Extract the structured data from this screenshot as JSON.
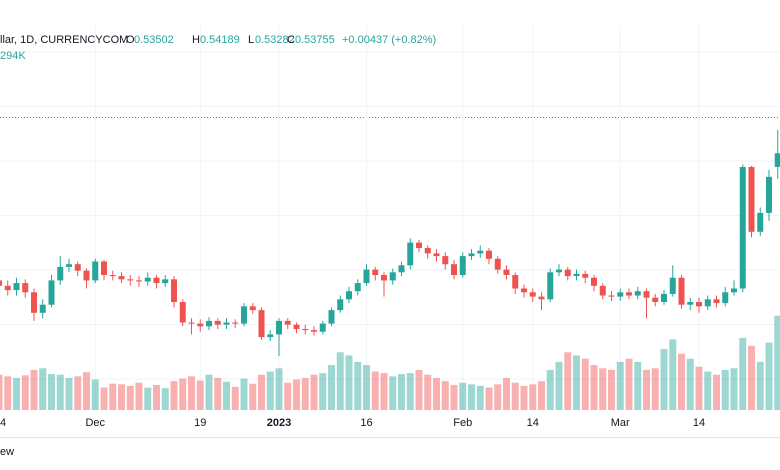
{
  "header": {
    "symbol": "llar, 1D, CURRENCYCOM",
    "o": "O",
    "h": "H",
    "l": "L",
    "c": "C",
    "change": "+0.00437 (+0.82%)",
    "volume": "294K",
    "footer": "ew"
  },
  "chart_data": {
    "type": "candlestick",
    "categories": [
      "4",
      null,
      null,
      null,
      null,
      null,
      null,
      null,
      null,
      null,
      null,
      "Dec",
      null,
      null,
      null,
      null,
      null,
      null,
      null,
      null,
      null,
      null,
      null,
      "19",
      null,
      null,
      null,
      null,
      null,
      null,
      null,
      null,
      "2023",
      null,
      null,
      null,
      null,
      null,
      null,
      null,
      null,
      null,
      "16",
      null,
      null,
      null,
      null,
      null,
      null,
      null,
      null,
      null,
      null,
      "Feb",
      null,
      null,
      null,
      null,
      null,
      null,
      null,
      "14",
      null,
      null,
      null,
      null,
      null,
      null,
      null,
      null,
      null,
      "Mar",
      null,
      null,
      null,
      null,
      null,
      null,
      null,
      null,
      "14",
      null,
      null,
      null,
      null,
      null,
      null,
      null,
      null,
      null
    ],
    "open": [
      0.514,
      0.513,
      0.5122,
      0.5135,
      0.5118,
      0.508,
      0.5095,
      0.514,
      0.5165,
      0.517,
      0.5158,
      0.514,
      0.5175,
      0.515,
      0.5148,
      0.5142,
      0.514,
      0.5138,
      0.5145,
      0.5135,
      0.5142,
      0.51,
      0.5062,
      0.506,
      0.5055,
      0.5065,
      0.5058,
      0.5062,
      0.506,
      0.5092,
      0.5085,
      0.5035,
      0.504,
      0.5065,
      0.5058,
      0.505,
      0.5048,
      0.5045,
      0.506,
      0.5085,
      0.5105,
      0.512,
      0.5135,
      0.516,
      0.515,
      0.514,
      0.5155,
      0.5168,
      0.521,
      0.52,
      0.519,
      0.5185,
      0.517,
      0.515,
      0.5185,
      0.519,
      0.5195,
      0.518,
      0.516,
      0.515,
      0.5125,
      0.5118,
      0.511,
      0.5105,
      0.5155,
      0.516,
      0.5148,
      0.5152,
      0.5145,
      0.513,
      0.5112,
      0.511,
      0.5118,
      0.5112,
      0.512,
      0.5108,
      0.51,
      0.5115,
      0.5145,
      0.5095,
      0.51,
      0.5092,
      0.5105,
      0.5098,
      0.5118,
      0.5125,
      0.535,
      0.523,
      0.5265,
      0.53502
    ],
    "high": [
      0.515,
      0.514,
      0.5145,
      0.5142,
      0.5125,
      0.5105,
      0.515,
      0.5185,
      0.518,
      0.5175,
      0.5162,
      0.518,
      0.5178,
      0.5158,
      0.5155,
      0.515,
      0.5148,
      0.5155,
      0.515,
      0.515,
      0.5148,
      0.5105,
      0.507,
      0.5068,
      0.5072,
      0.507,
      0.507,
      0.5068,
      0.5098,
      0.5098,
      0.509,
      0.5048,
      0.507,
      0.507,
      0.5062,
      0.5058,
      0.5055,
      0.5065,
      0.509,
      0.5112,
      0.5128,
      0.5142,
      0.517,
      0.5165,
      0.5155,
      0.5162,
      0.5175,
      0.5218,
      0.5215,
      0.5205,
      0.5198,
      0.5192,
      0.5178,
      0.5192,
      0.5198,
      0.5205,
      0.52,
      0.5185,
      0.5168,
      0.5155,
      0.5132,
      0.5125,
      0.5118,
      0.5162,
      0.517,
      0.5165,
      0.516,
      0.5158,
      0.515,
      0.5135,
      0.512,
      0.5125,
      0.5125,
      0.5128,
      0.5125,
      0.5115,
      0.5122,
      0.5168,
      0.515,
      0.5108,
      0.5108,
      0.5112,
      0.5112,
      0.5128,
      0.514,
      0.5355,
      0.5352,
      0.5275,
      0.5345,
      0.54189
    ],
    "low": [
      0.512,
      0.5112,
      0.5112,
      0.5108,
      0.5065,
      0.507,
      0.509,
      0.5132,
      0.5155,
      0.5148,
      0.5125,
      0.5135,
      0.514,
      0.514,
      0.5135,
      0.513,
      0.5128,
      0.513,
      0.5125,
      0.5128,
      0.509,
      0.5055,
      0.504,
      0.5045,
      0.5048,
      0.505,
      0.505,
      0.5052,
      0.5055,
      0.5078,
      0.503,
      0.5028,
      0.5,
      0.505,
      0.5042,
      0.504,
      0.5038,
      0.504,
      0.5055,
      0.508,
      0.5098,
      0.5112,
      0.513,
      0.514,
      0.511,
      0.5132,
      0.5148,
      0.516,
      0.5192,
      0.518,
      0.5175,
      0.516,
      0.5142,
      0.5145,
      0.5178,
      0.5182,
      0.517,
      0.5152,
      0.5142,
      0.5115,
      0.5108,
      0.51,
      0.5085,
      0.51,
      0.5148,
      0.514,
      0.514,
      0.5135,
      0.512,
      0.5105,
      0.5102,
      0.5102,
      0.5105,
      0.5105,
      0.507,
      0.5092,
      0.5095,
      0.511,
      0.5088,
      0.5085,
      0.508,
      0.5085,
      0.509,
      0.5092,
      0.5112,
      0.5118,
      0.522,
      0.5222,
      0.525,
      0.53282
    ],
    "close": [
      0.513,
      0.5122,
      0.5135,
      0.5118,
      0.508,
      0.5095,
      0.514,
      0.5165,
      0.517,
      0.5158,
      0.514,
      0.5175,
      0.515,
      0.5148,
      0.5142,
      0.514,
      0.5138,
      0.5145,
      0.5135,
      0.5142,
      0.51,
      0.5062,
      0.506,
      0.5055,
      0.5065,
      0.5058,
      0.5062,
      0.506,
      0.5092,
      0.5085,
      0.5035,
      0.504,
      0.5065,
      0.5058,
      0.505,
      0.5048,
      0.5045,
      0.506,
      0.5085,
      0.5105,
      0.512,
      0.5135,
      0.516,
      0.515,
      0.514,
      0.5155,
      0.5168,
      0.521,
      0.52,
      0.519,
      0.5185,
      0.517,
      0.515,
      0.5185,
      0.519,
      0.5195,
      0.518,
      0.516,
      0.515,
      0.5125,
      0.5118,
      0.511,
      0.5105,
      0.5155,
      0.516,
      0.5148,
      0.5152,
      0.5145,
      0.513,
      0.5112,
      0.511,
      0.5118,
      0.5112,
      0.512,
      0.5108,
      0.51,
      0.5115,
      0.5145,
      0.5095,
      0.51,
      0.5092,
      0.5105,
      0.5098,
      0.5118,
      0.5125,
      0.535,
      0.523,
      0.5265,
      0.53318,
      0.53755
    ],
    "volume": [
      110000,
      105000,
      100000,
      108000,
      125000,
      130000,
      112000,
      110000,
      100000,
      105000,
      118000,
      95000,
      70000,
      82000,
      80000,
      75000,
      85000,
      70000,
      78000,
      68000,
      90000,
      98000,
      105000,
      92000,
      110000,
      100000,
      88000,
      72000,
      98000,
      82000,
      110000,
      120000,
      130000,
      85000,
      95000,
      100000,
      110000,
      115000,
      140000,
      180000,
      170000,
      150000,
      140000,
      120000,
      115000,
      105000,
      112000,
      115000,
      125000,
      110000,
      100000,
      90000,
      78000,
      85000,
      80000,
      75000,
      70000,
      80000,
      100000,
      85000,
      75000,
      80000,
      90000,
      125000,
      150000,
      180000,
      170000,
      160000,
      140000,
      130000,
      125000,
      150000,
      160000,
      150000,
      125000,
      130000,
      190000,
      220000,
      175000,
      160000,
      135000,
      120000,
      110000,
      125000,
      130000,
      225000,
      200000,
      150000,
      210000,
      294000
    ],
    "up_color": "#26a69a",
    "down_color": "#ef5350",
    "ylim": [
      0.49,
      0.5613
    ],
    "volume_lim": [
      0,
      1200000
    ],
    "grid": true
  }
}
